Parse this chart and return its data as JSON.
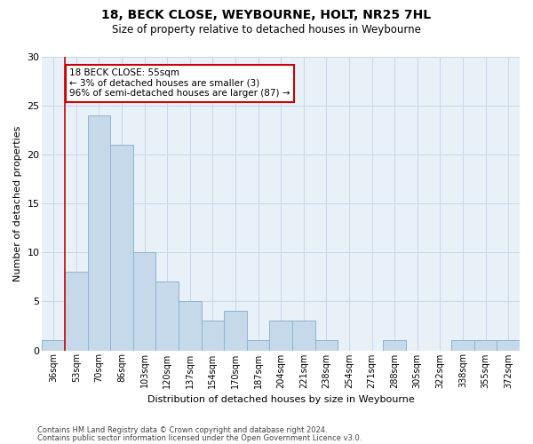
{
  "title": "18, BECK CLOSE, WEYBOURNE, HOLT, NR25 7HL",
  "subtitle": "Size of property relative to detached houses in Weybourne",
  "xlabel": "Distribution of detached houses by size in Weybourne",
  "ylabel": "Number of detached properties",
  "categories": [
    "36sqm",
    "53sqm",
    "70sqm",
    "86sqm",
    "103sqm",
    "120sqm",
    "137sqm",
    "154sqm",
    "170sqm",
    "187sqm",
    "204sqm",
    "221sqm",
    "238sqm",
    "254sqm",
    "271sqm",
    "288sqm",
    "305sqm",
    "322sqm",
    "338sqm",
    "355sqm",
    "372sqm"
  ],
  "values": [
    1,
    8,
    24,
    21,
    10,
    7,
    5,
    3,
    4,
    1,
    3,
    3,
    1,
    0,
    0,
    1,
    0,
    0,
    1,
    1,
    1
  ],
  "bar_color": "#c6d9ea",
  "bar_edgecolor": "#8cb4d2",
  "ylim": [
    0,
    30
  ],
  "yticks": [
    0,
    5,
    10,
    15,
    20,
    25,
    30
  ],
  "vline_x": 0.5,
  "annotation_title": "18 BECK CLOSE: 55sqm",
  "annotation_line1": "← 3% of detached houses are smaller (3)",
  "annotation_line2": "96% of semi-detached houses are larger (87) →",
  "annotation_box_color": "#ffffff",
  "annotation_box_edgecolor": "#cc0000",
  "vline_color": "#cc0000",
  "footer1": "Contains HM Land Registry data © Crown copyright and database right 2024.",
  "footer2": "Contains public sector information licensed under the Open Government Licence v3.0.",
  "background_color": "#ffffff",
  "grid_color": "#c8d8e8",
  "axes_bg": "#e8f0f8"
}
